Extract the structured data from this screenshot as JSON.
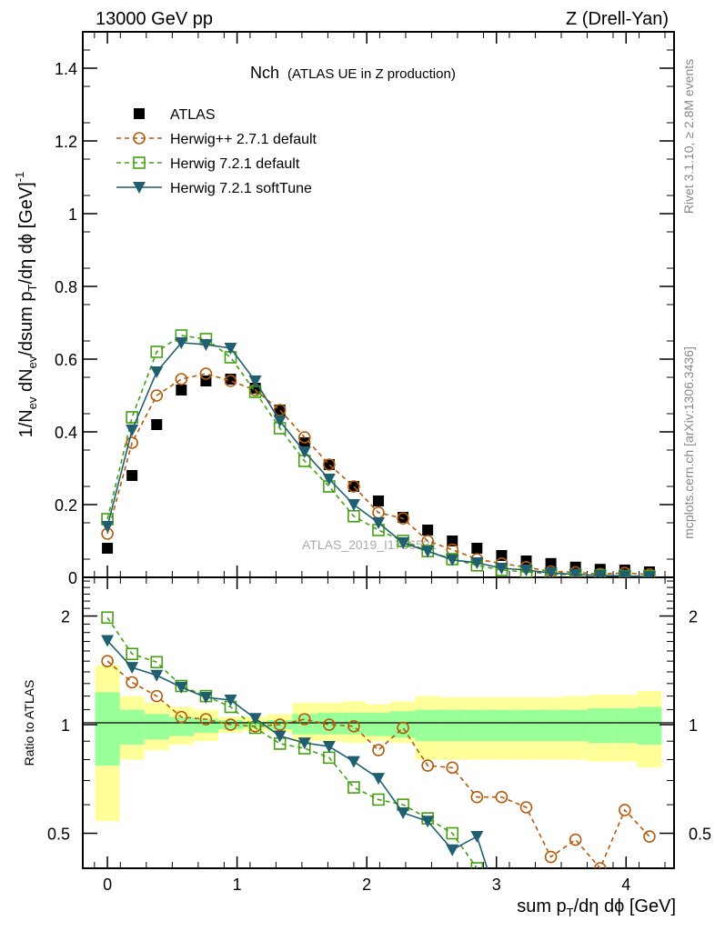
{
  "chart_data": {
    "type": "line",
    "header_left": "13000 GeV pp",
    "header_right": "Z (Drell-Yan)",
    "title_main": "Nch",
    "title_sub": "(ATLAS UE in Z production)",
    "watermark": "ATLAS_2019_I1736531",
    "side_text_top": "Rivet 3.1.10, ≥ 2.8M events",
    "side_text_bottom": "mcplots.cern.ch [arXiv:1306.3436]",
    "ylabel": [
      {
        "t": "1/N",
        "s": ""
      },
      {
        "t": "ev",
        "s": "sub"
      },
      {
        "t": " dN",
        "s": ""
      },
      {
        "t": "ev",
        "s": "sub"
      },
      {
        "t": "/dsum p",
        "s": ""
      },
      {
        "t": "T",
        "s": "sub"
      },
      {
        "t": "/dη dϕ  [GeV]",
        "s": ""
      },
      {
        "t": "-1",
        "s": "sup"
      }
    ],
    "xlabel": [
      {
        "t": "sum p",
        "s": ""
      },
      {
        "t": "T",
        "s": "sub"
      },
      {
        "t": "/dη dϕ [GeV]",
        "s": ""
      }
    ],
    "ratio_ylabel": "Ratio to ATLAS",
    "xlim": [
      -0.19,
      4.37
    ],
    "ylim": [
      0,
      1.5
    ],
    "ratio_ylim": [
      0.4,
      2.56
    ],
    "ratio_scale": "log",
    "x_ticks": [
      "0",
      "1",
      "2",
      "3",
      "4"
    ],
    "y_ticks": [
      "0",
      "0.2",
      "0.4",
      "0.6",
      "0.8",
      "1",
      "1.2",
      "1.4"
    ],
    "ratio_ticks": [
      "0.5",
      "1",
      "2"
    ],
    "legend_position": "top-left",
    "x": [
      0,
      0.19,
      0.38,
      0.57,
      0.76,
      0.95,
      1.14,
      1.33,
      1.52,
      1.71,
      1.9,
      2.09,
      2.28,
      2.47,
      2.66,
      2.85,
      3.04,
      3.23,
      3.42,
      3.61,
      3.8,
      3.99,
      4.18
    ],
    "series": [
      {
        "name": "ATLAS",
        "key": "atlas",
        "color": "#000000",
        "marker": "filled-square",
        "line": "none",
        "values": [
          0.08,
          0.28,
          0.42,
          0.515,
          0.54,
          0.545,
          0.52,
          0.46,
          0.37,
          0.31,
          0.25,
          0.21,
          0.165,
          0.13,
          0.1,
          0.08,
          0.06,
          0.045,
          0.038,
          0.028,
          0.022,
          0.02,
          0.015
        ]
      },
      {
        "name": "Herwig++ 2.7.1 default",
        "key": "hpp",
        "color": "#b55a0a",
        "marker": "open-circle",
        "line": "dashed",
        "values": [
          0.12,
          0.37,
          0.5,
          0.545,
          0.56,
          0.54,
          0.515,
          0.46,
          0.385,
          0.31,
          0.25,
          0.178,
          0.162,
          0.1,
          0.076,
          0.05,
          0.038,
          0.028,
          0.016,
          0.014,
          0.009,
          0.012,
          0.008
        ],
        "ratio": [
          1.5,
          1.31,
          1.2,
          1.05,
          1.035,
          1.0,
          0.99,
          1.0,
          1.035,
          1.0,
          0.99,
          0.85,
          0.98,
          0.77,
          0.76,
          0.63,
          0.63,
          0.59,
          0.43,
          0.48,
          0.4,
          0.58,
          0.49
        ]
      },
      {
        "name": "Herwig 7.2.1 default",
        "key": "h7def",
        "color": "#44a010",
        "marker": "open-square",
        "line": "dashed",
        "values": [
          0.16,
          0.44,
          0.62,
          0.665,
          0.655,
          0.605,
          0.51,
          0.41,
          0.32,
          0.25,
          0.168,
          0.13,
          0.1,
          0.072,
          0.05,
          0.033,
          0.02,
          0.015,
          0.01,
          0.006,
          0.005,
          0.004,
          0.003
        ],
        "ratio": [
          1.98,
          1.57,
          1.49,
          1.28,
          1.2,
          1.12,
          0.98,
          0.886,
          0.86,
          0.81,
          0.67,
          0.62,
          0.6,
          0.55,
          0.5,
          0.4
        ]
      },
      {
        "name": "Herwig 7.2.1 softTune",
        "key": "h7soft",
        "color": "#1f5f70",
        "marker": "filled-down-triangle",
        "line": "solid",
        "values": [
          0.14,
          0.405,
          0.565,
          0.645,
          0.64,
          0.63,
          0.54,
          0.43,
          0.345,
          0.27,
          0.2,
          0.15,
          0.095,
          0.072,
          0.048,
          0.04,
          0.025,
          0.02,
          0.012,
          0.008,
          0.005,
          0.004,
          0.002
        ],
        "ratio": [
          1.71,
          1.44,
          1.37,
          1.27,
          1.19,
          1.17,
          1.04,
          0.93,
          0.89,
          0.87,
          0.79,
          0.71,
          0.57,
          0.54,
          0.45,
          0.49,
          0.3
        ]
      }
    ],
    "bands": {
      "outer_color": "#ffff99",
      "inner_color": "#99ff99",
      "outer": [
        [
          0.54,
          1.46
        ],
        [
          0.8,
          1.2
        ],
        [
          0.85,
          1.15
        ],
        [
          0.88,
          1.12
        ],
        [
          0.9,
          1.1
        ],
        [
          0.95,
          1.05
        ],
        [
          0.96,
          1.05
        ],
        [
          0.95,
          1.07
        ],
        [
          0.9,
          1.15
        ],
        [
          0.9,
          1.15
        ],
        [
          0.89,
          1.16
        ],
        [
          0.9,
          1.14
        ],
        [
          0.89,
          1.16
        ],
        [
          0.8,
          1.2
        ],
        [
          0.8,
          1.19
        ],
        [
          0.8,
          1.19
        ],
        [
          0.8,
          1.19
        ],
        [
          0.8,
          1.19
        ],
        [
          0.8,
          1.19
        ],
        [
          0.8,
          1.2
        ],
        [
          0.79,
          1.21
        ],
        [
          0.79,
          1.21
        ],
        [
          0.76,
          1.24
        ]
      ],
      "inner": [
        [
          0.77,
          1.23
        ],
        [
          0.88,
          1.1
        ],
        [
          0.91,
          1.07
        ],
        [
          0.93,
          1.05
        ],
        [
          0.95,
          1.04
        ],
        [
          0.97,
          1.03
        ],
        [
          0.98,
          1.02
        ],
        [
          0.97,
          1.03
        ],
        [
          0.94,
          1.07
        ],
        [
          0.94,
          1.08
        ],
        [
          0.94,
          1.08
        ],
        [
          0.93,
          1.08
        ],
        [
          0.92,
          1.09
        ],
        [
          0.9,
          1.1
        ],
        [
          0.9,
          1.1
        ],
        [
          0.9,
          1.1
        ],
        [
          0.9,
          1.1
        ],
        [
          0.9,
          1.1
        ],
        [
          0.9,
          1.1
        ],
        [
          0.9,
          1.1
        ],
        [
          0.89,
          1.11
        ],
        [
          0.89,
          1.11
        ],
        [
          0.88,
          1.12
        ]
      ]
    }
  }
}
